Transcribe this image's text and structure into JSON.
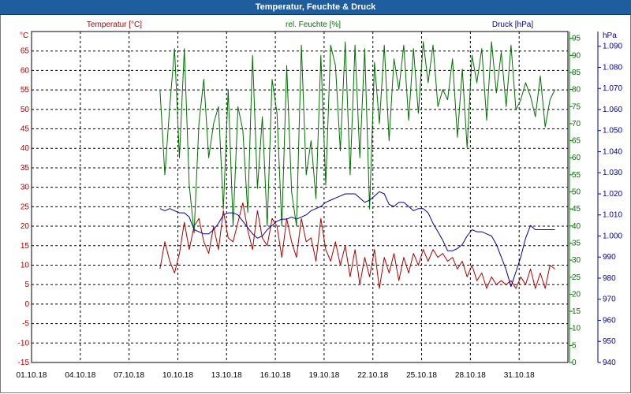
{
  "title": "Temperatur, Feuchte & Druck",
  "colors": {
    "temp": "#b00000",
    "hum": "#007000",
    "press": "#0000a0",
    "grid": "#000000",
    "title_bg": "#1f5e9e"
  },
  "chart_data": {
    "type": "line",
    "title": "Temperatur, Feuchte & Druck",
    "x_axis": {
      "unit": "days since 01.10.18",
      "range": [
        0,
        33
      ],
      "ticks": [
        0,
        3,
        6,
        9,
        12,
        15,
        18,
        21,
        24,
        27,
        30
      ],
      "tick_labels": [
        "01.10.18",
        "04.10.18",
        "07.10.18",
        "10.10.18",
        "13.10.18",
        "16.10.18",
        "19.10.18",
        "22.10.18",
        "25.10.18",
        "28.10.18",
        "31.10.18"
      ]
    },
    "axes": {
      "temp": {
        "unit": "°C",
        "range": [
          -15,
          70
        ],
        "ticks": [
          -15,
          -10,
          -5,
          0,
          5,
          10,
          15,
          20,
          25,
          30,
          35,
          40,
          45,
          50,
          55,
          60,
          65
        ],
        "tick_labels": [
          "-15",
          "-10",
          "-5",
          "0",
          "5",
          "10",
          "15",
          "20",
          "25",
          "30",
          "35",
          "40",
          "45",
          "50",
          "55",
          "60",
          "65"
        ]
      },
      "hum": {
        "unit": "%",
        "range": [
          0,
          97
        ],
        "ticks": [
          0,
          5,
          10,
          15,
          20,
          25,
          30,
          35,
          40,
          45,
          50,
          55,
          60,
          65,
          70,
          75,
          80,
          85,
          90,
          95
        ],
        "tick_labels": [
          "0",
          "5",
          "10",
          "15",
          "20",
          "25",
          "30",
          "35",
          "40",
          "45",
          "50",
          "55",
          "60",
          "65",
          "70",
          "75",
          "80",
          "85",
          "90",
          "95"
        ]
      },
      "press": {
        "unit": "hPa",
        "range": [
          940,
          1097
        ],
        "ticks": [
          940,
          950,
          960,
          970,
          980,
          990,
          1000,
          1010,
          1020,
          1030,
          1040,
          1050,
          1060,
          1070,
          1080,
          1090
        ],
        "tick_labels": [
          "940",
          "950",
          "960",
          "970",
          "980",
          "990",
          "1.000",
          "1.010",
          "1.020",
          "1.030",
          "1.040",
          "1.050",
          "1.060",
          "1.070",
          "1.080",
          "1.090"
        ]
      }
    },
    "series": [
      {
        "name": "Temperatur [°C]",
        "axis": "temp",
        "color": "#b00000",
        "x": [
          7.9,
          8.2,
          8.5,
          8.8,
          9.1,
          9.4,
          9.7,
          10.0,
          10.3,
          10.6,
          10.9,
          11.2,
          11.5,
          11.8,
          12.1,
          12.4,
          12.7,
          13.0,
          13.3,
          13.6,
          13.9,
          14.2,
          14.5,
          14.8,
          15.1,
          15.4,
          15.7,
          16.0,
          16.3,
          16.6,
          16.9,
          17.2,
          17.5,
          17.8,
          18.1,
          18.4,
          18.7,
          19.0,
          19.3,
          19.6,
          19.9,
          20.2,
          20.5,
          20.8,
          21.1,
          21.4,
          21.7,
          22.0,
          22.3,
          22.6,
          22.9,
          23.2,
          23.5,
          23.8,
          24.1,
          24.4,
          24.7,
          25.0,
          25.3,
          25.6,
          25.9,
          26.2,
          26.5,
          26.8,
          27.1,
          27.4,
          27.7,
          28.0,
          28.3,
          28.6,
          28.9,
          29.2,
          29.5,
          29.8,
          30.1,
          30.4,
          30.7,
          31.0,
          31.3,
          31.6,
          31.9,
          32.2
        ],
        "y": [
          9,
          16,
          11,
          8,
          13,
          21,
          14,
          20,
          22,
          16,
          13,
          20,
          14,
          24,
          17,
          16,
          21,
          26,
          19,
          14,
          24,
          17,
          15,
          22,
          20,
          12,
          22,
          16,
          12,
          22,
          16,
          17,
          11,
          22,
          14,
          11,
          16,
          10,
          15,
          7,
          14,
          5,
          12,
          7,
          14,
          4,
          12,
          8,
          13,
          6,
          12,
          8,
          13,
          10,
          14,
          11,
          14,
          12,
          13,
          11,
          12,
          9,
          11,
          7,
          10,
          6,
          8,
          4,
          7,
          5,
          6,
          5,
          6,
          4,
          7,
          5,
          9,
          4,
          8,
          4,
          10,
          9
        ]
      },
      {
        "name": "rel. Feuchte [%]",
        "axis": "hum",
        "color": "#007000",
        "x": [
          7.9,
          8.2,
          8.5,
          8.8,
          9.1,
          9.4,
          9.7,
          10.0,
          10.3,
          10.6,
          10.9,
          11.2,
          11.5,
          11.8,
          12.1,
          12.4,
          12.7,
          13.0,
          13.3,
          13.6,
          13.9,
          14.2,
          14.5,
          14.8,
          15.1,
          15.4,
          15.7,
          16.0,
          16.3,
          16.6,
          16.9,
          17.2,
          17.5,
          17.8,
          18.1,
          18.4,
          18.7,
          19.0,
          19.3,
          19.6,
          19.9,
          20.2,
          20.5,
          20.8,
          21.1,
          21.4,
          21.7,
          22.0,
          22.3,
          22.6,
          22.9,
          23.2,
          23.5,
          23.8,
          24.1,
          24.4,
          24.7,
          25.0,
          25.3,
          25.6,
          25.9,
          26.2,
          26.5,
          26.8,
          27.1,
          27.4,
          27.7,
          28.0,
          28.3,
          28.6,
          28.9,
          29.2,
          29.5,
          29.8,
          30.1,
          30.4,
          30.7,
          31.0,
          31.3,
          31.6,
          31.9,
          32.2
        ],
        "y": [
          80,
          55,
          75,
          92,
          60,
          92,
          52,
          38,
          70,
          83,
          60,
          70,
          75,
          45,
          80,
          40,
          75,
          68,
          44,
          90,
          51,
          72,
          40,
          83,
          73,
          40,
          87,
          50,
          40,
          93,
          55,
          65,
          48,
          90,
          52,
          93,
          87,
          62,
          94,
          55,
          93,
          60,
          92,
          45,
          88,
          70,
          93,
          65,
          89,
          80,
          93,
          71,
          92,
          73,
          94,
          82,
          93,
          75,
          80,
          77,
          89,
          66,
          86,
          63,
          90,
          82,
          92,
          71,
          94,
          79,
          91,
          75,
          93,
          74,
          77,
          82,
          78,
          72,
          84,
          69,
          77,
          80
        ]
      },
      {
        "name": "Druck [hPa]",
        "axis": "press",
        "color": "#0000a0",
        "x": [
          7.9,
          8.2,
          8.5,
          8.8,
          9.1,
          9.4,
          9.7,
          10.0,
          10.3,
          10.6,
          10.9,
          11.2,
          11.5,
          11.8,
          12.1,
          12.4,
          12.7,
          13.0,
          13.3,
          13.6,
          13.9,
          14.2,
          14.5,
          14.8,
          15.1,
          15.4,
          15.7,
          16.0,
          16.3,
          16.6,
          16.9,
          17.2,
          17.5,
          17.8,
          18.1,
          18.4,
          18.7,
          19.0,
          19.3,
          19.6,
          19.9,
          20.2,
          20.5,
          20.8,
          21.1,
          21.4,
          21.7,
          22.0,
          22.3,
          22.6,
          22.9,
          23.2,
          23.5,
          23.8,
          24.1,
          24.4,
          24.7,
          25.0,
          25.3,
          25.6,
          25.9,
          26.2,
          26.5,
          26.8,
          27.1,
          27.4,
          27.7,
          28.0,
          28.3,
          28.6,
          28.9,
          29.2,
          29.5,
          29.8,
          30.1,
          30.4,
          30.7,
          31.0,
          31.3,
          31.6,
          31.9,
          32.2
        ],
        "y": [
          1013,
          1012,
          1013,
          1012,
          1011,
          1011,
          1009,
          1003,
          1002,
          1001,
          1001,
          1003,
          1006,
          1010,
          1011,
          1011,
          1010,
          1007,
          1004,
          1001,
          999,
          1000,
          1003,
          1005,
          1007,
          1008,
          1008,
          1009,
          1008,
          1009,
          1010,
          1012,
          1013,
          1014,
          1016,
          1017,
          1018,
          1019,
          1020,
          1020,
          1020,
          1018,
          1016,
          1017,
          1019,
          1021,
          1020,
          1015,
          1014,
          1016,
          1016,
          1014,
          1012,
          1013,
          1013,
          1011,
          1006,
          1002,
          998,
          993,
          993,
          994,
          996,
          1000,
          1003,
          1002,
          1002,
          1001,
          1000,
          996,
          990,
          984,
          976,
          983,
          990,
          999,
          1005,
          1003,
          1003,
          1003,
          1003,
          1003
        ]
      }
    ],
    "legend": [
      {
        "label": "Temperatur [°C]",
        "color": "#b00000"
      },
      {
        "label": "rel. Feuchte [%]",
        "color": "#007000"
      },
      {
        "label": "Druck [hPa]",
        "color": "#0000a0"
      }
    ]
  }
}
